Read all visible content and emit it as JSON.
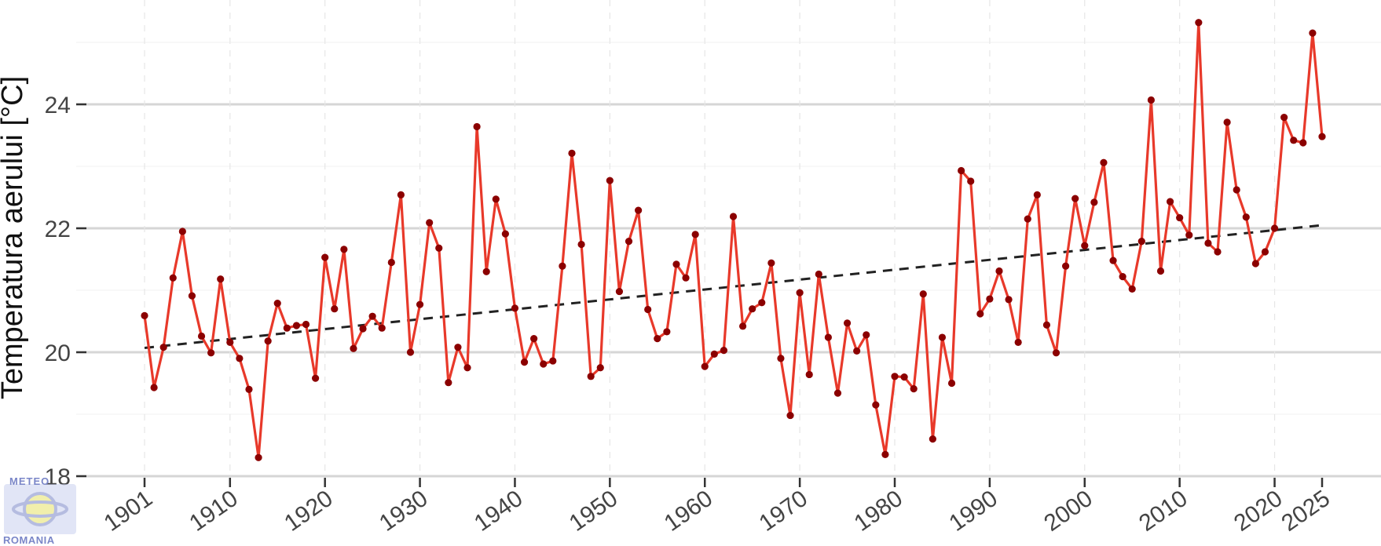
{
  "chart_data": {
    "type": "line",
    "title": "",
    "xlabel": "",
    "ylabel": "Temperatura aerului [°C]",
    "xlim": [
      1894,
      2086
    ],
    "ylim": [
      17.9,
      25.6
    ],
    "y_ticks": [
      18,
      20,
      22,
      24
    ],
    "x_ticks": [
      1901,
      1910,
      1920,
      1930,
      1940,
      1950,
      1960,
      1970,
      1980,
      1990,
      2000,
      2010,
      2020,
      2025
    ],
    "grid": true,
    "line_color": "#e8392a",
    "marker_color": "#8b0000",
    "trend_color": "#222222",
    "series": [
      {
        "x": [
          1901,
          1902,
          1903,
          1904,
          1905,
          1906,
          1907,
          1908,
          1909,
          1910,
          1911,
          1912,
          1913,
          1914,
          1915,
          1916,
          1917,
          1918,
          1919,
          1920,
          1921,
          1922,
          1923,
          1924,
          1925,
          1926,
          1927,
          1928,
          1929,
          1930,
          1931,
          1932,
          1933,
          1934,
          1935,
          1936,
          1937,
          1938,
          1939,
          1940,
          1941,
          1942,
          1943,
          1944,
          1945,
          1946,
          1947,
          1948,
          1949,
          1950,
          1951,
          1952,
          1953,
          1954,
          1955,
          1956,
          1957,
          1958,
          1959,
          1960,
          1961,
          1962,
          1963,
          1964,
          1965,
          1966,
          1967,
          1968,
          1969,
          1970,
          1971,
          1972,
          1973,
          1974,
          1975,
          1976,
          1977,
          1978,
          1979,
          1980,
          1981,
          1982,
          1983,
          1984,
          1985,
          1986,
          1987,
          1988,
          1989,
          1990,
          1991,
          1992,
          1993,
          1994,
          1995,
          1996,
          1997,
          1998,
          1999,
          2000,
          2001,
          2002,
          2003,
          2004,
          2005,
          2006,
          2007,
          2008,
          2009,
          2010,
          2011,
          2012,
          2013,
          2014,
          2015,
          2016,
          2017,
          2018,
          2019,
          2020,
          2021,
          2022,
          2023,
          2024,
          2025
        ],
        "values": [
          20.59,
          19.43,
          20.08,
          21.2,
          21.95,
          20.91,
          20.26,
          19.99,
          21.18,
          20.16,
          19.9,
          19.4,
          18.3,
          20.18,
          20.79,
          20.39,
          20.43,
          20.45,
          19.58,
          21.53,
          20.7,
          21.66,
          20.06,
          20.38,
          20.58,
          20.39,
          21.45,
          22.54,
          20.0,
          20.77,
          22.09,
          21.68,
          19.51,
          20.08,
          19.75,
          23.64,
          21.3,
          22.47,
          21.91,
          20.71,
          19.84,
          20.22,
          19.81,
          19.86,
          21.39,
          23.21,
          21.74,
          19.61,
          19.75,
          22.77,
          20.98,
          21.79,
          22.29,
          20.69,
          20.22,
          20.33,
          21.42,
          21.2,
          21.9,
          19.77,
          19.97,
          20.03,
          22.19,
          20.42,
          20.7,
          20.8,
          21.44,
          19.9,
          18.98,
          20.96,
          19.64,
          21.26,
          20.24,
          19.34,
          20.47,
          20.02,
          20.28,
          19.15,
          18.35,
          19.61,
          19.6,
          19.41,
          20.94,
          18.6,
          20.24,
          19.5,
          22.93,
          22.76,
          20.62,
          20.86,
          21.31,
          20.85,
          20.16,
          22.15,
          22.54,
          20.44,
          19.99,
          21.39,
          22.48,
          21.72,
          22.42,
          23.06,
          21.48,
          21.22,
          21.02,
          21.79,
          24.07,
          21.31,
          22.43,
          22.17,
          21.89,
          25.32,
          21.76,
          21.62,
          23.71,
          22.62,
          22.18,
          21.43,
          21.62,
          22.0,
          23.79,
          23.42,
          23.38,
          25.15,
          23.48
        ]
      }
    ],
    "trend": {
      "x": [
        1901,
        2025
      ],
      "y": [
        20.07,
        22.05
      ]
    },
    "logo_text": [
      "METEO",
      "ROMANIA"
    ]
  }
}
